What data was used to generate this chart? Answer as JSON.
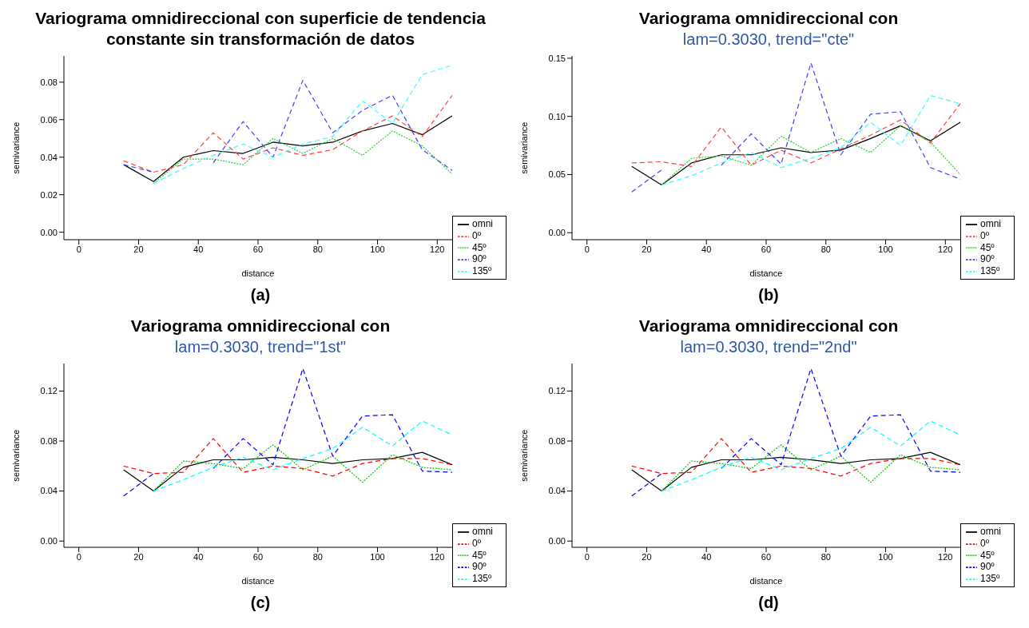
{
  "chart_data": [
    {
      "type": "line",
      "title": "Variograma omnidireccional con superficie de tendencia constante sin transformación de datos",
      "xlabel": "distance",
      "ylabel": "semivariance",
      "annotations": [
        "(a)"
      ],
      "legend": "bottom right",
      "grid": false,
      "x": [
        15,
        25,
        35,
        45,
        55,
        65,
        75,
        85,
        95,
        105,
        115,
        125
      ],
      "xlim": [
        -5,
        125
      ],
      "xticks": [
        0,
        20,
        40,
        60,
        80,
        100,
        120
      ],
      "ylim": [
        -0.004,
        0.094
      ],
      "yticks": [
        {
          "value": 0,
          "label": "0.00"
        },
        {
          "value": 0.02,
          "label": "0.02"
        },
        {
          "value": 0.04,
          "label": "0.04"
        },
        {
          "value": 0.06,
          "label": "0.06"
        },
        {
          "value": 0.08,
          "label": "0.08"
        }
      ],
      "series": [
        {
          "name": "omni",
          "color": "#000000",
          "line_style": "solid",
          "values": [
            0.036,
            0.027,
            0.04,
            0.0435,
            0.042,
            0.048,
            0.046,
            0.048,
            0.054,
            0.058,
            0.052,
            0.062
          ]
        },
        {
          "name": "0º",
          "color": "#ff4040",
          "line_style": "dashed",
          "values": [
            0.038,
            0.032,
            0.036,
            0.053,
            0.039,
            0.045,
            0.041,
            0.044,
            0.054,
            0.062,
            0.051,
            0.073
          ]
        },
        {
          "name": "45º",
          "color": "#33cc33",
          "line_style": "dotted",
          "values": [
            null,
            0.026,
            0.039,
            0.039,
            0.036,
            0.05,
            0.042,
            0.05,
            0.041,
            0.054,
            0.046,
            0.031
          ]
        },
        {
          "name": "90º",
          "color": "#4040ff",
          "line_style": "dashed",
          "values": [
            0.036,
            0.032,
            null,
            0.037,
            0.059,
            0.04,
            0.081,
            0.053,
            0.065,
            0.073,
            0.044,
            0.033
          ]
        },
        {
          "name": "135º",
          "color": "#33ffff",
          "line_style": "dashed",
          "values": [
            null,
            0.026,
            0.034,
            0.041,
            0.047,
            0.04,
            0.047,
            0.051,
            0.07,
            0.058,
            0.084,
            0.089
          ]
        }
      ]
    },
    {
      "type": "line",
      "title": "Variograma omnidireccional con",
      "subtitle": "lam=0.3030, trend=\"cte\"",
      "xlabel": "distance",
      "ylabel": "semivariance",
      "annotations": [
        "(b)"
      ],
      "legend": "bottom right",
      "grid": false,
      "x": [
        15,
        25,
        35,
        45,
        55,
        65,
        75,
        85,
        95,
        105,
        115,
        125
      ],
      "xlim": [
        -5,
        125
      ],
      "xticks": [
        0,
        20,
        40,
        60,
        80,
        100,
        120
      ],
      "ylim": [
        -0.006,
        0.152
      ],
      "yticks": [
        {
          "value": 0,
          "label": "0.00"
        },
        {
          "value": 0.05,
          "label": "0.05"
        },
        {
          "value": 0.1,
          "label": "0.10"
        },
        {
          "value": 0.15,
          "label": "0.15"
        }
      ],
      "series": [
        {
          "name": "omni",
          "color": "#000000",
          "line_style": "solid",
          "values": [
            0.057,
            0.041,
            0.06,
            0.067,
            0.067,
            0.073,
            0.069,
            0.071,
            0.081,
            0.092,
            0.079,
            0.095
          ]
        },
        {
          "name": "0º",
          "color": "#ff4040",
          "line_style": "dashed",
          "values": [
            0.06,
            0.061,
            0.057,
            0.091,
            0.058,
            0.071,
            0.06,
            0.072,
            0.084,
            0.097,
            0.077,
            0.111
          ]
        },
        {
          "name": "45º",
          "color": "#33cc33",
          "line_style": "dotted",
          "values": [
            null,
            0.041,
            0.064,
            0.066,
            0.058,
            0.083,
            0.069,
            0.081,
            0.069,
            0.092,
            0.078,
            0.05
          ]
        },
        {
          "name": "90º",
          "color": "#4040ff",
          "line_style": "dashed",
          "values": [
            0.035,
            0.054,
            null,
            0.058,
            0.085,
            0.059,
            0.146,
            0.067,
            0.102,
            0.104,
            0.056,
            0.046
          ]
        },
        {
          "name": "135º",
          "color": "#33ffff",
          "line_style": "dashed",
          "values": [
            null,
            0.041,
            0.049,
            0.06,
            0.069,
            0.056,
            0.064,
            0.073,
            0.095,
            0.075,
            0.118,
            0.111
          ]
        }
      ]
    },
    {
      "type": "line",
      "title": "Variograma omnidireccional con",
      "subtitle": "lam=0.3030, trend=\"1st\"",
      "xlabel": "distance",
      "ylabel": "semivariance",
      "annotations": [
        "(c)"
      ],
      "legend": "bottom right",
      "grid": false,
      "x": [
        15,
        25,
        35,
        45,
        55,
        65,
        75,
        85,
        95,
        105,
        115,
        125
      ],
      "xlim": [
        -5,
        125
      ],
      "xticks": [
        0,
        20,
        40,
        60,
        80,
        100,
        120
      ],
      "ylim": [
        -0.005,
        0.142
      ],
      "yticks": [
        {
          "value": 0,
          "label": "0.00"
        },
        {
          "value": 0.04,
          "label": "0.04"
        },
        {
          "value": 0.08,
          "label": "0.08"
        },
        {
          "value": 0.12,
          "label": "0.12"
        }
      ],
      "series": [
        {
          "name": "omni",
          "color": "#000000",
          "line_style": "solid",
          "values": [
            0.057,
            0.04,
            0.059,
            0.065,
            0.065,
            0.067,
            0.065,
            0.062,
            0.065,
            0.066,
            0.071,
            0.061
          ]
        },
        {
          "name": "0º",
          "color": "#ff0000",
          "line_style": "dashed",
          "values": [
            0.06,
            0.054,
            0.055,
            0.082,
            0.055,
            0.06,
            0.058,
            0.052,
            0.062,
            0.066,
            0.066,
            0.061
          ]
        },
        {
          "name": "45º",
          "color": "#00cc00",
          "line_style": "dotted",
          "values": [
            null,
            0.04,
            0.064,
            0.062,
            0.058,
            0.077,
            0.057,
            0.068,
            0.047,
            0.069,
            0.059,
            0.057
          ]
        },
        {
          "name": "90º",
          "color": "#0000ff",
          "line_style": "dashed",
          "values": [
            0.036,
            0.054,
            null,
            0.058,
            0.082,
            0.061,
            0.138,
            0.068,
            0.1,
            0.101,
            0.056,
            0.055
          ]
        },
        {
          "name": "135º",
          "color": "#00ffff",
          "line_style": "dashed",
          "values": [
            null,
            0.04,
            0.049,
            0.059,
            0.067,
            0.057,
            0.066,
            0.074,
            0.091,
            0.076,
            0.096,
            0.085
          ]
        }
      ]
    },
    {
      "type": "line",
      "title": "Variograma omnidireccional con",
      "subtitle": "lam=0.3030, trend=\"2nd\"",
      "xlabel": "distance",
      "ylabel": "semivariance",
      "annotations": [
        "(d)"
      ],
      "legend": "bottom right",
      "grid": false,
      "x": [
        15,
        25,
        35,
        45,
        55,
        65,
        75,
        85,
        95,
        105,
        115,
        125
      ],
      "xlim": [
        -5,
        125
      ],
      "xticks": [
        0,
        20,
        40,
        60,
        80,
        100,
        120
      ],
      "ylim": [
        -0.005,
        0.142
      ],
      "yticks": [
        {
          "value": 0,
          "label": "0.00"
        },
        {
          "value": 0.04,
          "label": "0.04"
        },
        {
          "value": 0.08,
          "label": "0.08"
        },
        {
          "value": 0.12,
          "label": "0.12"
        }
      ],
      "series": [
        {
          "name": "omni",
          "color": "#000000",
          "line_style": "solid",
          "values": [
            0.057,
            0.04,
            0.059,
            0.065,
            0.065,
            0.067,
            0.065,
            0.062,
            0.065,
            0.066,
            0.071,
            0.061
          ]
        },
        {
          "name": "0º",
          "color": "#ff0000",
          "line_style": "dashed",
          "values": [
            0.06,
            0.054,
            0.055,
            0.082,
            0.055,
            0.06,
            0.058,
            0.052,
            0.062,
            0.066,
            0.066,
            0.061
          ]
        },
        {
          "name": "45º",
          "color": "#00cc00",
          "line_style": "dotted",
          "values": [
            null,
            0.04,
            0.064,
            0.062,
            0.058,
            0.077,
            0.057,
            0.068,
            0.047,
            0.069,
            0.059,
            0.057
          ]
        },
        {
          "name": "90º",
          "color": "#0000ff",
          "line_style": "dashed",
          "values": [
            0.036,
            0.054,
            null,
            0.058,
            0.082,
            0.061,
            0.138,
            0.068,
            0.1,
            0.101,
            0.056,
            0.055
          ]
        },
        {
          "name": "135º",
          "color": "#00ffff",
          "line_style": "dashed",
          "values": [
            null,
            0.04,
            0.049,
            0.059,
            0.067,
            0.057,
            0.066,
            0.074,
            0.091,
            0.076,
            0.096,
            0.085
          ]
        }
      ]
    }
  ]
}
